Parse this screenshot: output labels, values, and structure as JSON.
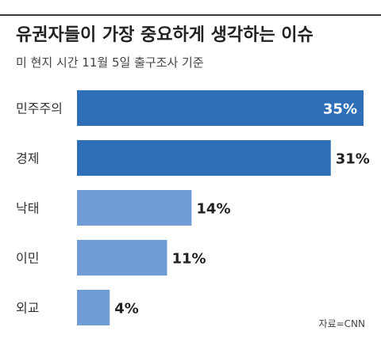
{
  "header": {
    "title": "유권자들이 가장 중요하게 생각하는 이슈",
    "subtitle": "미 현지 시간 11월 5일 출구조사 기준"
  },
  "source": "자료=CNN",
  "colors": {
    "bar_dark": "#2f6fb8",
    "bar_light": "#6f9dd4",
    "rule": "#3a3a3a"
  },
  "chart_data": {
    "type": "bar",
    "orientation": "horizontal",
    "title": "유권자들이 가장 중요하게 생각하는 이슈",
    "subtitle": "미 현지 시간 11월 5일 출구조사 기준",
    "categories": [
      "민주주의",
      "경제",
      "낙태",
      "이민",
      "외교"
    ],
    "values": [
      35,
      31,
      14,
      11,
      4
    ],
    "value_labels": [
      "35%",
      "31%",
      "14%",
      "11%",
      "4%"
    ],
    "unit": "%",
    "xlim": [
      0,
      35
    ],
    "grid": false,
    "legend": "none"
  }
}
